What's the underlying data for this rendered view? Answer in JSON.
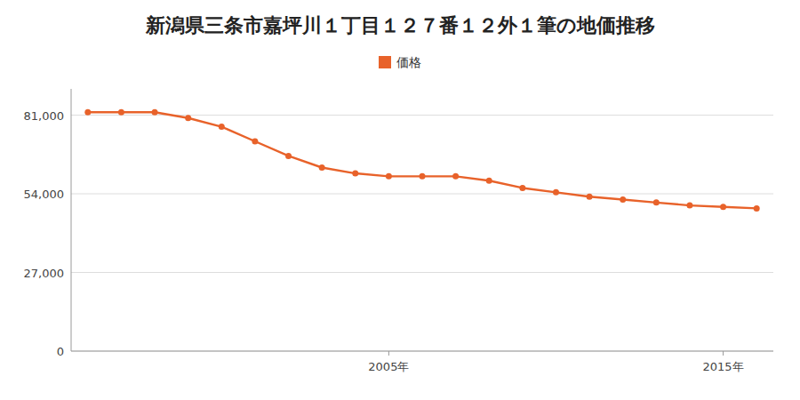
{
  "chart_data": {
    "type": "line",
    "title": "新潟県三条市嘉坪川１丁目１２７番１２外１筆の地価推移",
    "x": [
      1996,
      1997,
      1998,
      1999,
      2000,
      2001,
      2002,
      2003,
      2004,
      2005,
      2006,
      2007,
      2008,
      2009,
      2010,
      2011,
      2012,
      2013,
      2014,
      2015,
      2016
    ],
    "series": [
      {
        "name": "価格",
        "color": "#e8622a",
        "marker": "circle",
        "values": [
          82000,
          82000,
          82000,
          80000,
          77000,
          72000,
          67000,
          63000,
          61000,
          60000,
          60000,
          60000,
          58500,
          56000,
          54500,
          53000,
          52000,
          51000,
          50000,
          49500,
          49000
        ]
      }
    ],
    "xlim": [
      1995.5,
      2016.5
    ],
    "xticks": [
      {
        "value": 2005,
        "label": "2005年"
      },
      {
        "value": 2015,
        "label": "2015年"
      }
    ],
    "ylim": [
      0,
      90000
    ],
    "yticks": [
      0,
      {
        "value": 27000,
        "label": "27,000"
      },
      {
        "value": 54000,
        "label": "54,000"
      },
      {
        "value": 81000,
        "label": "81,000"
      }
    ],
    "grid": true,
    "legend": "top"
  }
}
